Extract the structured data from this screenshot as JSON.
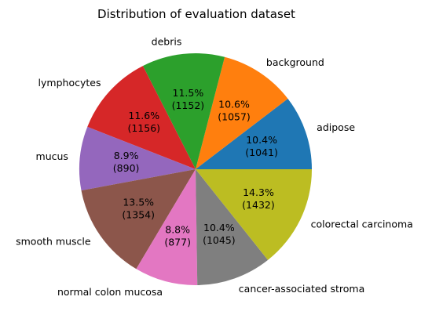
{
  "chart_data": {
    "type": "pie",
    "title": "Distribution of evaluation dataset",
    "slices": [
      {
        "label": "adipose",
        "value": 1041,
        "percent": "10.4%",
        "color": "#1f77b4"
      },
      {
        "label": "background",
        "value": 1057,
        "percent": "10.6%",
        "color": "#ff7f0e"
      },
      {
        "label": "debris",
        "value": 1152,
        "percent": "11.5%",
        "color": "#2ca02c"
      },
      {
        "label": "lymphocytes",
        "value": 1156,
        "percent": "11.6%",
        "color": "#d62728"
      },
      {
        "label": "mucus",
        "value": 890,
        "percent": "8.9%",
        "color": "#9467bd"
      },
      {
        "label": "smooth muscle",
        "value": 1354,
        "percent": "13.5%",
        "color": "#8c564b"
      },
      {
        "label": "normal colon mucosa",
        "value": 877,
        "percent": "8.8%",
        "color": "#e377c2"
      },
      {
        "label": "cancer-associated stroma",
        "value": 1045,
        "percent": "10.4%",
        "color": "#7f7f7f"
      },
      {
        "label": "colorectal carcinoma",
        "value": 1432,
        "percent": "14.3%",
        "color": "#bcbd22"
      }
    ],
    "start_angle_deg": 0,
    "direction": "counterclockwise",
    "legend": "none",
    "grid": false
  }
}
